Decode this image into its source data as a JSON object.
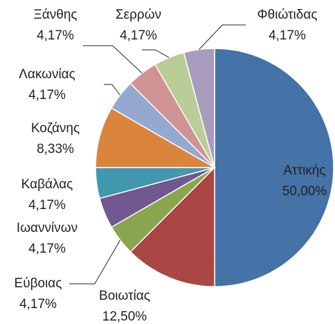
{
  "chart_data": {
    "type": "pie",
    "categories": [
      "Αττικής",
      "Βοιωτίας",
      "Εύβοιας",
      "Ιωαννίνων",
      "Καβάλας",
      "Κοζάνης",
      "Λακωνίας",
      "Ξάνθης",
      "Σερρών",
      "Φθιώτιδας"
    ],
    "values": [
      50,
      12.5,
      4.17,
      4.17,
      4.17,
      8.33,
      4.17,
      4.17,
      4.17,
      4.17
    ],
    "value_labels": [
      "50,00%",
      "12,50%",
      "4,17%",
      "4,17%",
      "4,17%",
      "8,33%",
      "4,17%",
      "4,17%",
      "4,17%",
      "4,17%"
    ],
    "colors": [
      "#4572a7",
      "#aa4643",
      "#89a54e",
      "#71588f",
      "#4198af",
      "#db843d",
      "#93a9cf",
      "#d19392",
      "#b9cd96",
      "#a99bbd"
    ]
  }
}
